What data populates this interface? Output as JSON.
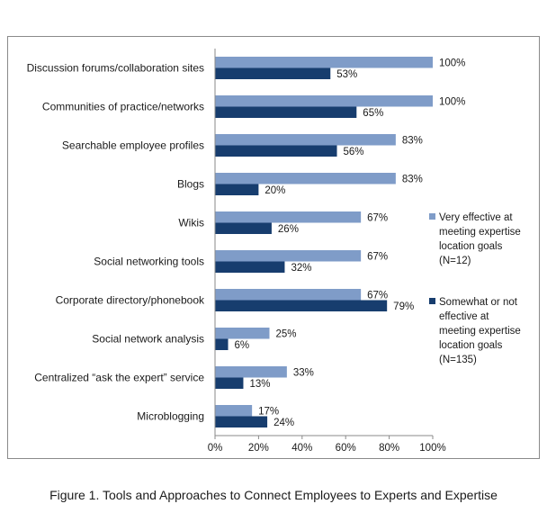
{
  "caption": "Figure 1. Tools and Approaches to Connect Employees to Experts and Expertise",
  "chart_data": {
    "type": "bar",
    "orientation": "horizontal",
    "categories": [
      "Discussion forums/collaboration sites",
      "Communities of practice/networks",
      "Searchable employee profiles",
      "Blogs",
      "Wikis",
      "Social networking tools",
      "Corporate directory/phonebook",
      "Social network analysis",
      "Centralized “ask the expert” service",
      "Microblogging"
    ],
    "series": [
      {
        "name": "Very effective at meeting expertise location goals (N=12)",
        "legend_lines": [
          "Very effective at",
          "meeting expertise",
          "location goals",
          "(N=12)"
        ],
        "color": "#7f9cc8",
        "values": [
          100,
          100,
          83,
          83,
          67,
          67,
          67,
          25,
          33,
          17
        ]
      },
      {
        "name": "Somewhat or not effective at meeting expertise location goals (N=135)",
        "legend_lines": [
          "Somewhat or not",
          "effective at",
          "meeting expertise",
          "location goals",
          "(N=135)"
        ],
        "color": "#173d6e",
        "values": [
          53,
          65,
          56,
          20,
          26,
          32,
          79,
          6,
          13,
          24
        ]
      }
    ],
    "xlim": [
      0,
      100
    ],
    "xticks": [
      "0%",
      "20%",
      "40%",
      "60%",
      "80%",
      "100%"
    ],
    "value_suffix": "%",
    "grid": false,
    "legend_position": "right"
  }
}
